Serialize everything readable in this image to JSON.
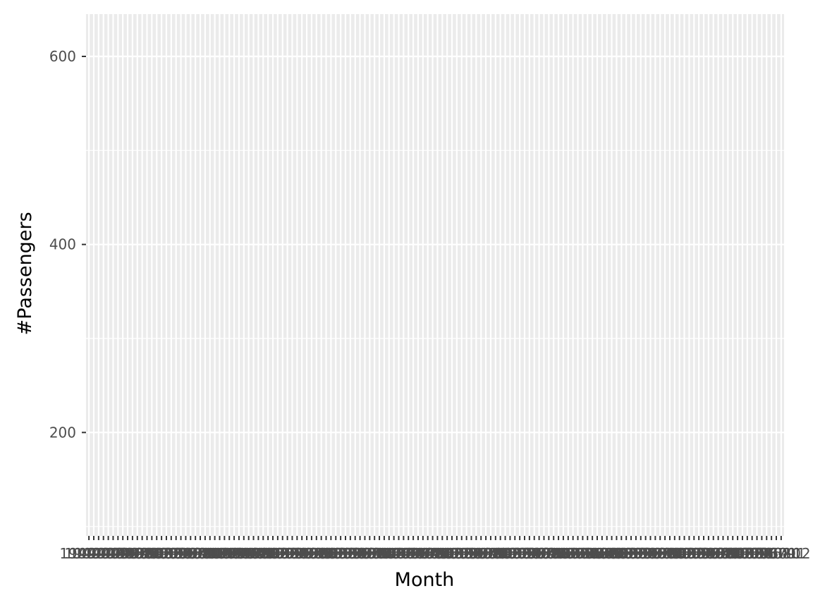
{
  "chart_data": {
    "type": "line",
    "title": "",
    "xlabel": "Month",
    "ylabel": "#Passengers",
    "x_start": "1949-01",
    "x_end": "1960-12",
    "x_tick_labels_visible": [
      "1949-01",
      "1960-12"
    ],
    "ylim": [
      90,
      645
    ],
    "y_ticks": [
      200,
      400,
      600
    ],
    "y_minor_ticks": [
      100,
      300,
      500
    ],
    "grid": true,
    "legend": "none",
    "series": [],
    "colors": {
      "panel_background": "#ebebeb",
      "grid": "#ffffff",
      "tick_label": "#4d4d4d",
      "tick_mark": "#333333",
      "axis_title": "#000000"
    }
  }
}
